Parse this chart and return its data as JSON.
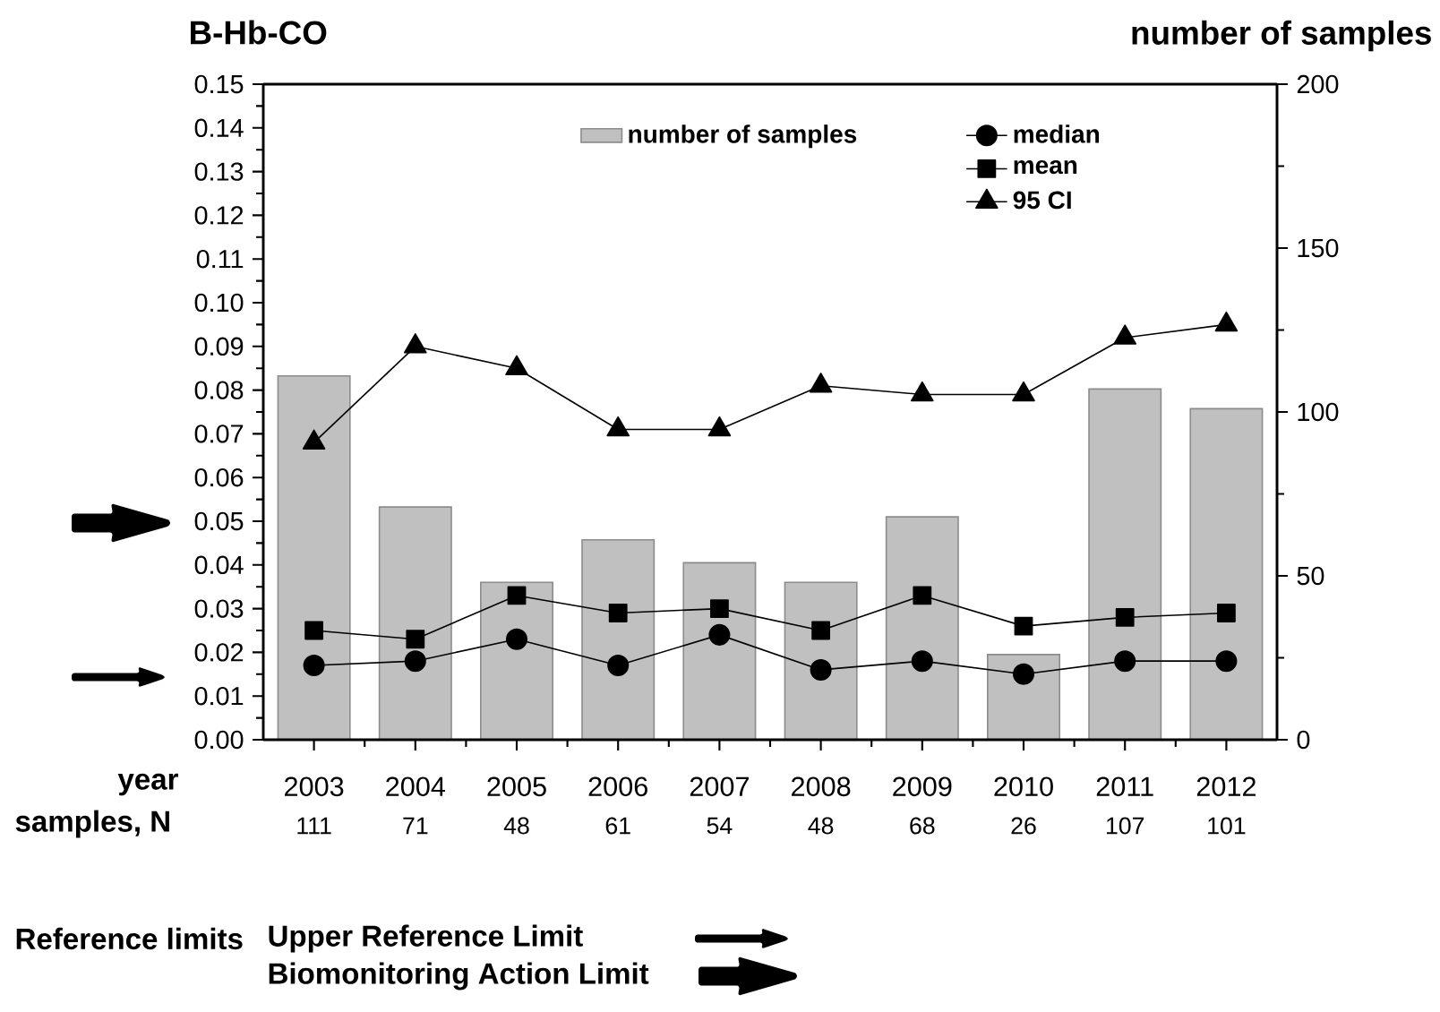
{
  "chart_data": {
    "type": "line",
    "ylabel": "B-Hb-CO",
    "y2label": "number of samples",
    "xlabel": "year",
    "annotations": [
      "samples, N",
      "Reference limits",
      "Upper Reference Limit",
      "Biomonitoring Action Limit"
    ],
    "categories": [
      "2003",
      "2004",
      "2005",
      "2006",
      "2007",
      "2008",
      "2009",
      "2010",
      "2011",
      "2012"
    ],
    "series": [
      {
        "name": "number of samples",
        "type": "bar",
        "axis": "y2",
        "color": "#c0c0c0",
        "values": [
          111,
          71,
          48,
          61,
          54,
          48,
          68,
          26,
          107,
          101
        ],
        "value_labels": [
          "111",
          "71",
          "48",
          "61",
          "54",
          "48",
          "68",
          "26",
          "107",
          "101"
        ]
      },
      {
        "name": "median",
        "color": "#000000",
        "marker": "circle",
        "values": [
          0.017,
          0.018,
          0.023,
          0.017,
          0.024,
          0.016,
          0.018,
          0.015,
          0.018,
          0.018
        ]
      },
      {
        "name": "mean",
        "color": "#000000",
        "marker": "square",
        "values": [
          0.025,
          0.023,
          0.033,
          0.029,
          0.03,
          0.025,
          0.033,
          0.026,
          0.028,
          0.029
        ]
      },
      {
        "name": "95 CI",
        "color": "#000000",
        "marker": "triangle",
        "values": [
          0.068,
          0.09,
          0.085,
          0.071,
          0.071,
          0.081,
          0.079,
          0.079,
          0.092,
          0.095
        ]
      }
    ],
    "ylim": [
      0,
      0.15
    ],
    "yticks": [
      {
        "value": 0,
        "label": "0.00"
      },
      {
        "value": 0.01,
        "label": "0.01"
      },
      {
        "value": 0.02,
        "label": "0.02"
      },
      {
        "value": 0.03,
        "label": "0.03"
      },
      {
        "value": 0.04,
        "label": "0.04"
      },
      {
        "value": 0.05,
        "label": "0.05"
      },
      {
        "value": 0.06,
        "label": "0.06"
      },
      {
        "value": 0.07,
        "label": "0.07"
      },
      {
        "value": 0.08,
        "label": "0.08"
      },
      {
        "value": 0.09,
        "label": "0.09"
      },
      {
        "value": 0.1,
        "label": "0.10"
      },
      {
        "value": 0.11,
        "label": "0.11"
      },
      {
        "value": 0.12,
        "label": "0.12"
      },
      {
        "value": 0.13,
        "label": "0.13"
      },
      {
        "value": 0.14,
        "label": "0.14"
      },
      {
        "value": 0.15,
        "label": "0.15"
      }
    ],
    "y2lim": [
      0,
      200
    ],
    "y2ticks": [
      0,
      50,
      100,
      150,
      200
    ],
    "legend": "top"
  }
}
